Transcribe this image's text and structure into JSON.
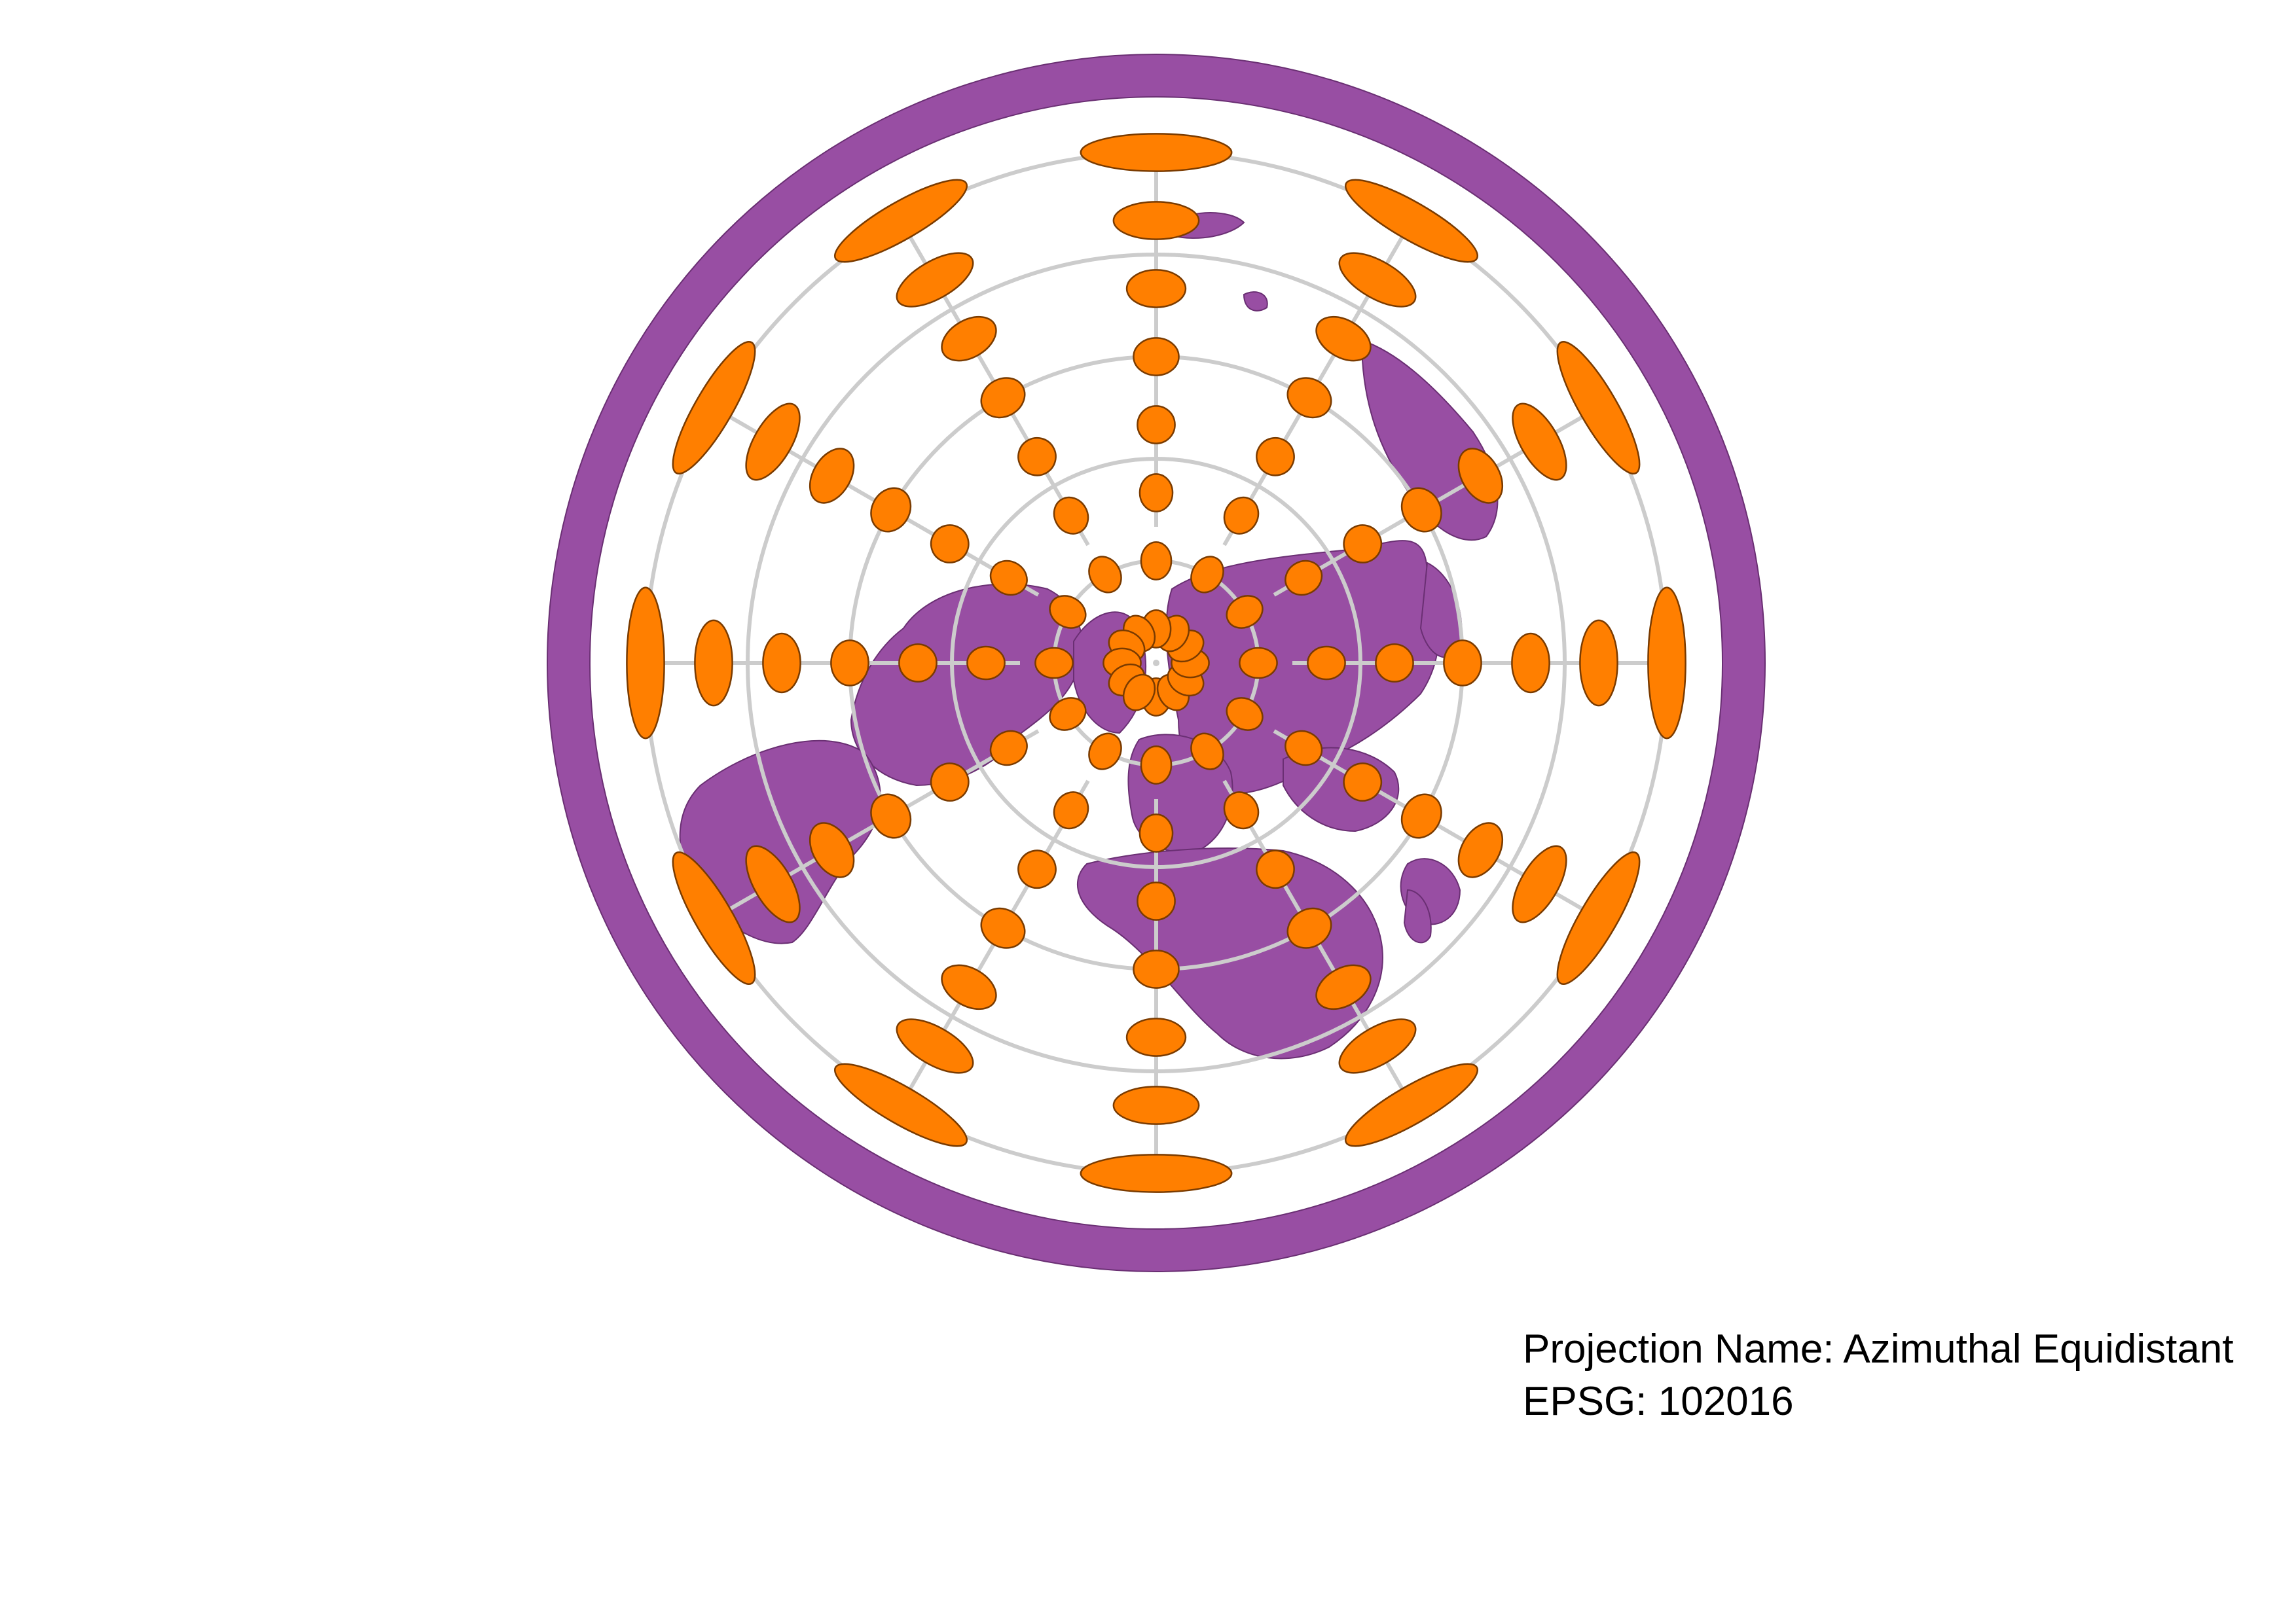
{
  "map": {
    "projection_name_label": "Projection Name: Azimuthal Equidistant",
    "epsg_label": "EPSG: 102016",
    "view": "north polar aspect, whole world",
    "land_color": "#984ea3",
    "tissot_color": "#ff7f00",
    "graticule_color": "#cccccc",
    "graticule": {
      "meridian_interval_deg": 30,
      "parallels_deg": [
        60,
        30,
        0,
        -30,
        -60
      ]
    },
    "tissot_indicatrix": {
      "longitudes_deg": [
        0,
        30,
        60,
        90,
        120,
        150,
        180,
        210,
        240,
        270,
        300,
        330
      ],
      "latitudes_deg": [
        80,
        60,
        40,
        20,
        0,
        -20,
        -40,
        -60
      ]
    },
    "icons": [
      "north-pole-marker"
    ]
  }
}
